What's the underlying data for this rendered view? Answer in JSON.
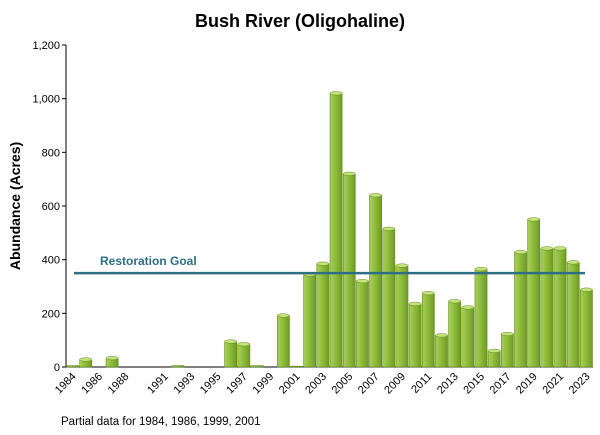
{
  "chart_data": {
    "type": "bar",
    "title": "Bush River (Oligohaline)",
    "ylabel": "Abundance (Acres)",
    "xlabel": "",
    "ylim": [
      0,
      1200
    ],
    "yticks": [
      0,
      200,
      400,
      600,
      800,
      "1,000",
      "1,200"
    ],
    "grid": false,
    "categories": [
      "1984",
      "1985",
      "1986",
      "1987",
      "1988",
      "1989",
      "1990",
      "1991",
      "1992",
      "1993",
      "1994",
      "1995",
      "1996",
      "1997",
      "1998",
      "1999",
      "2000",
      "2001",
      "2002",
      "2003",
      "2004",
      "2005",
      "2006",
      "2007",
      "2008",
      "2009",
      "2010",
      "2011",
      "2012",
      "2013",
      "2014",
      "2015",
      "2016",
      "2017",
      "2018",
      "2019",
      "2020",
      "2021",
      "2022",
      "2023"
    ],
    "xtick_labels": [
      "1984",
      "1986",
      "1988",
      "1991",
      "1993",
      "1995",
      "1997",
      "1999",
      "2001",
      "2003",
      "2005",
      "2007",
      "2009",
      "2011",
      "2013",
      "2015",
      "2017",
      "2019",
      "2021",
      "2023"
    ],
    "values": [
      5,
      28,
      0,
      33,
      0,
      0,
      0,
      0,
      5,
      0,
      0,
      0,
      95,
      85,
      5,
      0,
      192,
      3,
      345,
      385,
      1020,
      720,
      320,
      640,
      515,
      378,
      235,
      275,
      118,
      245,
      222,
      365,
      60,
      123,
      428,
      550,
      442,
      442,
      390,
      288
    ],
    "bar_color": "#8DB93A",
    "reference_line": {
      "label": "Restoration Goal",
      "value": 350,
      "color": "#2E6F86"
    },
    "footnote": "Partial data for 1984, 1986, 1999, 2001"
  }
}
